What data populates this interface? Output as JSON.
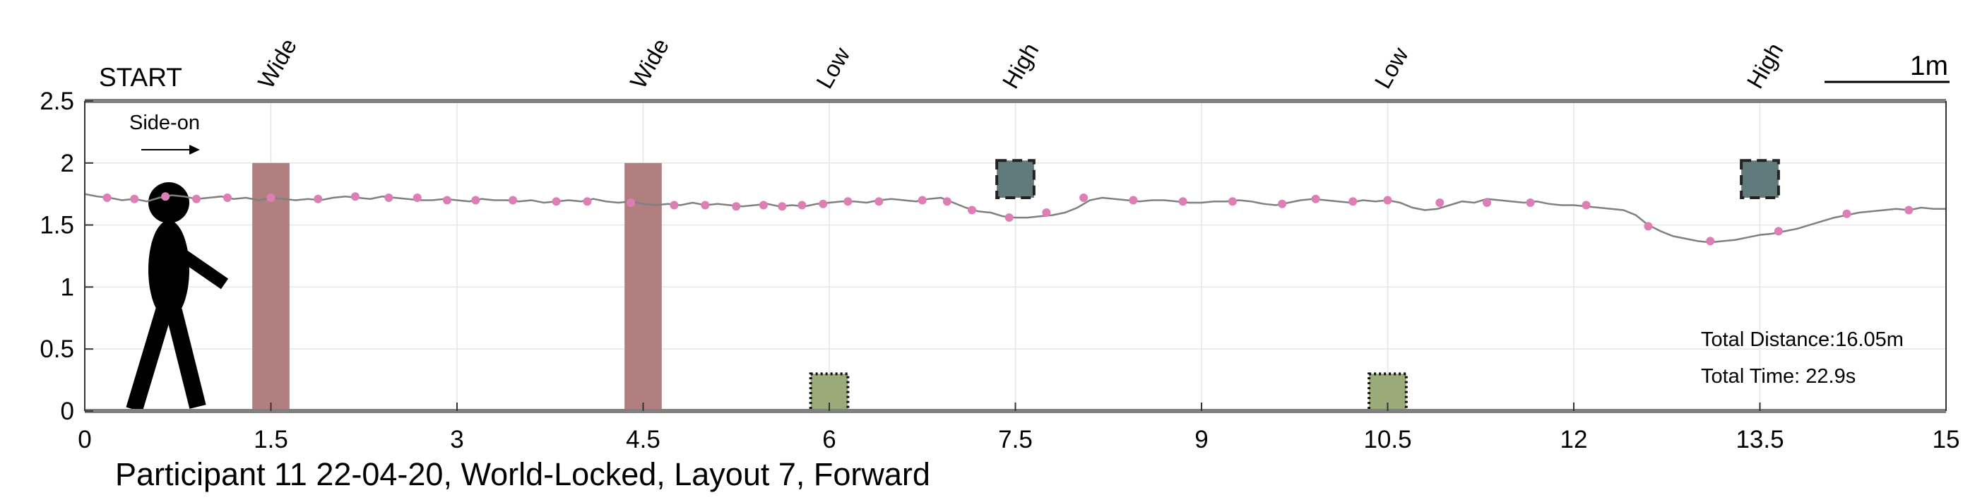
{
  "chart_data": {
    "type": "line",
    "caption": "Participant 11 22-04-20, World-Locked, Layout 7, Forward",
    "start_label": "START",
    "direction_label": "Side-on",
    "scale_bar_label": "1m",
    "xlim": [
      0,
      15
    ],
    "ylim": [
      0,
      2.5
    ],
    "x_ticks": [
      0,
      1.5,
      3,
      4.5,
      6,
      7.5,
      9,
      10.5,
      12,
      13.5,
      15
    ],
    "x_tick_labels": [
      "0",
      "1.5",
      "3",
      "4.5",
      "6",
      "7.5",
      "9",
      "10.5",
      "12",
      "13.5",
      "15"
    ],
    "y_ticks": [
      0,
      0.5,
      1,
      1.5,
      2,
      2.5
    ],
    "y_tick_labels": [
      "0",
      "0.5",
      "1",
      "1.5",
      "2",
      "2.5"
    ],
    "grid": true,
    "obstacle_labels": [
      {
        "x": 1.5,
        "text": "Wide"
      },
      {
        "x": 4.5,
        "text": "Wide"
      },
      {
        "x": 6.0,
        "text": "Low"
      },
      {
        "x": 7.5,
        "text": "High"
      },
      {
        "x": 10.5,
        "text": "Low"
      },
      {
        "x": 13.5,
        "text": "High"
      }
    ],
    "obstacles": [
      {
        "kind": "wide",
        "x_start": 1.35,
        "x_end": 1.65,
        "y_start": 0,
        "y_end": 2.0,
        "color": "#b17f7f"
      },
      {
        "kind": "wide",
        "x_start": 4.35,
        "x_end": 4.65,
        "y_start": 0,
        "y_end": 2.0,
        "color": "#b17f7f"
      },
      {
        "kind": "low",
        "x_start": 5.85,
        "x_end": 6.15,
        "y_start": 0,
        "y_end": 0.3,
        "color": "#9aab79"
      },
      {
        "kind": "low",
        "x_start": 10.35,
        "x_end": 10.65,
        "y_start": 0,
        "y_end": 0.3,
        "color": "#9aab79"
      },
      {
        "kind": "high",
        "x_start": 7.35,
        "x_end": 7.65,
        "y_start": 1.72,
        "y_end": 2.02,
        "color": "#617b7d"
      },
      {
        "kind": "high",
        "x_start": 13.35,
        "x_end": 13.65,
        "y_start": 1.72,
        "y_end": 2.02,
        "color": "#617b7d"
      }
    ],
    "series": [
      {
        "line_color": "#808080",
        "marker_color": "#dd7fb4",
        "x": [
          0,
          0.1,
          0.2,
          0.3,
          0.4,
          0.5,
          0.6,
          0.7,
          0.8,
          0.9,
          1.0,
          1.1,
          1.2,
          1.3,
          1.4,
          1.5,
          1.6,
          1.7,
          1.8,
          1.9,
          2.0,
          2.1,
          2.2,
          2.3,
          2.4,
          2.5,
          2.6,
          2.7,
          2.8,
          2.9,
          3.0,
          3.1,
          3.2,
          3.3,
          3.4,
          3.5,
          3.6,
          3.7,
          3.8,
          3.9,
          4.0,
          4.1,
          4.2,
          4.3,
          4.4,
          4.5,
          4.6,
          4.7,
          4.8,
          4.9,
          5.0,
          5.1,
          5.2,
          5.3,
          5.4,
          5.5,
          5.6,
          5.7,
          5.8,
          5.9,
          6.0,
          6.1,
          6.2,
          6.3,
          6.4,
          6.5,
          6.6,
          6.7,
          6.8,
          6.9,
          7.0,
          7.1,
          7.2,
          7.3,
          7.4,
          7.5,
          7.6,
          7.7,
          7.8,
          7.9,
          8.0,
          8.1,
          8.2,
          8.3,
          8.4,
          8.5,
          8.6,
          8.7,
          8.8,
          8.9,
          9.0,
          9.1,
          9.2,
          9.3,
          9.4,
          9.5,
          9.6,
          9.7,
          9.8,
          9.9,
          10.0,
          10.1,
          10.2,
          10.3,
          10.4,
          10.5,
          10.6,
          10.7,
          10.8,
          10.9,
          11.0,
          11.1,
          11.2,
          11.3,
          11.4,
          11.5,
          11.6,
          11.7,
          11.8,
          11.9,
          12.0,
          12.1,
          12.2,
          12.3,
          12.4,
          12.5,
          12.6,
          12.7,
          12.8,
          12.9,
          13.0,
          13.1,
          13.2,
          13.3,
          13.4,
          13.5,
          13.6,
          13.7,
          13.8,
          13.9,
          14.0,
          14.1,
          14.2,
          14.3,
          14.4,
          14.5,
          14.6,
          14.7,
          14.8,
          14.9,
          15.0
        ],
        "y": [
          1.75,
          1.73,
          1.72,
          1.7,
          1.71,
          1.69,
          1.72,
          1.74,
          1.73,
          1.71,
          1.72,
          1.73,
          1.71,
          1.72,
          1.7,
          1.72,
          1.71,
          1.7,
          1.71,
          1.7,
          1.72,
          1.73,
          1.72,
          1.71,
          1.73,
          1.72,
          1.71,
          1.7,
          1.7,
          1.71,
          1.7,
          1.69,
          1.71,
          1.7,
          1.7,
          1.69,
          1.7,
          1.68,
          1.69,
          1.7,
          1.69,
          1.71,
          1.69,
          1.68,
          1.69,
          1.67,
          1.66,
          1.67,
          1.66,
          1.68,
          1.66,
          1.67,
          1.66,
          1.65,
          1.66,
          1.67,
          1.65,
          1.66,
          1.65,
          1.67,
          1.68,
          1.69,
          1.69,
          1.68,
          1.7,
          1.71,
          1.7,
          1.69,
          1.71,
          1.72,
          1.68,
          1.64,
          1.61,
          1.6,
          1.57,
          1.56,
          1.56,
          1.57,
          1.58,
          1.6,
          1.64,
          1.7,
          1.72,
          1.71,
          1.7,
          1.69,
          1.7,
          1.7,
          1.69,
          1.68,
          1.68,
          1.69,
          1.69,
          1.7,
          1.69,
          1.67,
          1.66,
          1.68,
          1.7,
          1.71,
          1.7,
          1.69,
          1.68,
          1.7,
          1.69,
          1.7,
          1.68,
          1.64,
          1.62,
          1.63,
          1.66,
          1.69,
          1.68,
          1.71,
          1.7,
          1.69,
          1.68,
          1.69,
          1.67,
          1.66,
          1.66,
          1.65,
          1.64,
          1.63,
          1.62,
          1.58,
          1.5,
          1.45,
          1.41,
          1.39,
          1.37,
          1.36,
          1.37,
          1.38,
          1.4,
          1.42,
          1.43,
          1.45,
          1.47,
          1.5,
          1.53,
          1.56,
          1.58,
          1.6,
          1.61,
          1.62,
          1.63,
          1.62,
          1.64,
          1.63,
          1.63
        ],
        "markers_x": [
          0.18,
          0.4,
          0.65,
          0.9,
          1.15,
          1.5,
          1.88,
          2.18,
          2.45,
          2.68,
          2.92,
          3.15,
          3.45,
          3.8,
          4.05,
          4.4,
          4.75,
          5.0,
          5.25,
          5.47,
          5.62,
          5.78,
          5.95,
          6.15,
          6.4,
          6.75,
          6.95,
          7.15,
          7.45,
          7.75,
          8.05,
          8.45,
          8.85,
          9.25,
          9.65,
          9.92,
          10.22,
          10.5,
          10.92,
          11.3,
          11.65,
          12.1,
          12.6,
          13.1,
          13.65,
          14.2,
          14.7
        ],
        "markers_y": [
          1.72,
          1.71,
          1.73,
          1.71,
          1.72,
          1.72,
          1.71,
          1.73,
          1.72,
          1.72,
          1.7,
          1.7,
          1.7,
          1.69,
          1.69,
          1.68,
          1.66,
          1.66,
          1.65,
          1.66,
          1.65,
          1.66,
          1.67,
          1.69,
          1.69,
          1.7,
          1.69,
          1.62,
          1.56,
          1.6,
          1.72,
          1.7,
          1.69,
          1.69,
          1.67,
          1.71,
          1.69,
          1.7,
          1.68,
          1.68,
          1.68,
          1.66,
          1.49,
          1.37,
          1.45,
          1.59,
          1.62
        ]
      }
    ],
    "annotations": [
      {
        "text": "Total Distance:16.05m"
      },
      {
        "text": "Total Time: 22.9s"
      }
    ]
  }
}
